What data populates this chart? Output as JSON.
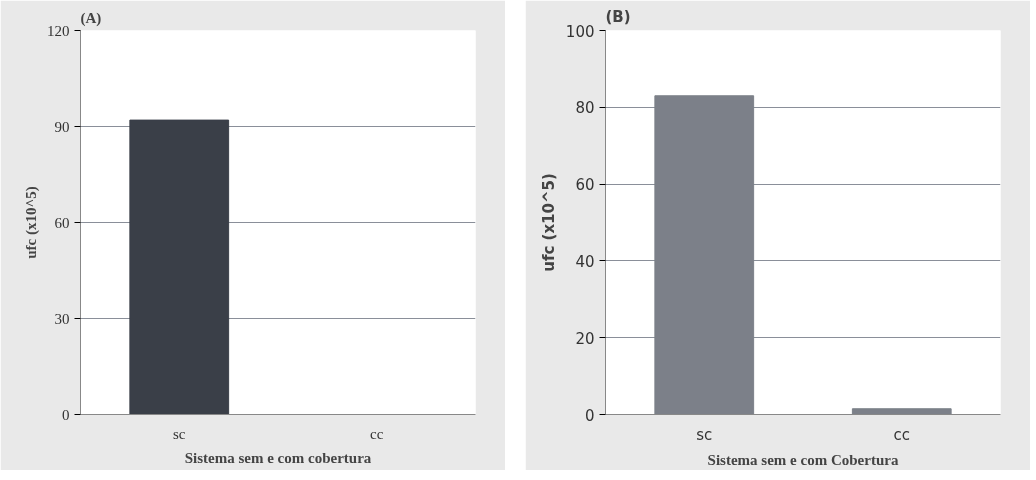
{
  "chart_data": [
    {
      "type": "bar",
      "title": "(A)",
      "xlabel": "Sistema sem e com cobertura",
      "ylabel": "ufc (x10^5)",
      "categories": [
        "sc",
        "cc"
      ],
      "values": [
        92,
        0
      ],
      "color": "#3a3f48",
      "ylim": [
        0,
        120
      ],
      "yticks": [
        0,
        30,
        60,
        90,
        120
      ],
      "grid": "y"
    },
    {
      "type": "bar",
      "title": "(B)",
      "xlabel": "Sistema sem e com Cobertura",
      "ylabel": "ufc (x10^5)",
      "categories": [
        "sc",
        "cc"
      ],
      "values": [
        83,
        1.5
      ],
      "color": "#7c8089",
      "ylim": [
        0,
        100
      ],
      "yticks": [
        0,
        20,
        40,
        60,
        80,
        100
      ],
      "grid": "y"
    }
  ]
}
